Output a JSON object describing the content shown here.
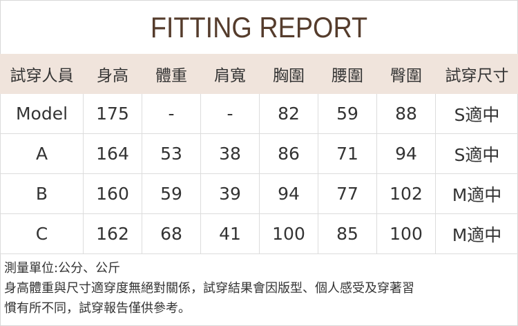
{
  "title": "FITTING REPORT",
  "headers": [
    "試穿人員",
    "身高",
    "體重",
    "肩寬",
    "胸圍",
    "腰圍",
    "臀圍",
    "試穿尺寸"
  ],
  "rows": [
    [
      "Model",
      "175",
      "-",
      "-",
      "82",
      "59",
      "88",
      "S適中"
    ],
    [
      "A",
      "164",
      "53",
      "38",
      "86",
      "71",
      "94",
      "S適中"
    ],
    [
      "B",
      "160",
      "59",
      "39",
      "94",
      "77",
      "102",
      "M適中"
    ],
    [
      "C",
      "162",
      "68",
      "41",
      "100",
      "85",
      "100",
      "M適中"
    ]
  ],
  "notes": [
    "測量單位:公分、公斤",
    "身高體重與尺寸適穿度無絕對關係，試穿結果會因版型、個人感受及穿著習",
    "慣有所不同，試穿報告僅供參考。"
  ],
  "colors": {
    "title": "#553c2c",
    "header_bg": "#f0e4dc"
  }
}
